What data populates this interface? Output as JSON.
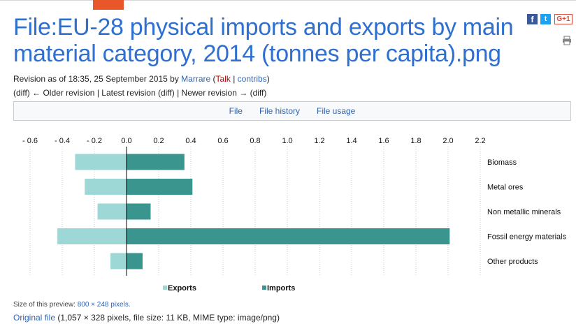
{
  "page": {
    "title": "File:EU-28 physical imports and exports by main material category, 2014 (tonnes per capita).png"
  },
  "share": {
    "facebook": "f",
    "twitter": "t",
    "googleplus": "G+1",
    "print_icon": "printer-icon"
  },
  "revision": {
    "prefix": "Revision as of 18:35, 25 September 2015 by ",
    "user": "Marrare",
    "open_paren": " (",
    "talk": "Talk",
    "sep": " | ",
    "contribs": "contribs",
    "close_paren": ")",
    "line2": "(diff) ← Older revision | Latest revision (diff) | Newer revision → (diff)"
  },
  "tabs": [
    "File",
    "File history",
    "File usage"
  ],
  "chart_data": {
    "type": "bar",
    "orientation": "horizontal",
    "categories": [
      "Biomass",
      "Metal ores",
      "Non metallic minerals",
      "Fossil energy materials",
      "Other products"
    ],
    "series": [
      {
        "name": "Exports",
        "values": [
          -0.32,
          -0.26,
          -0.18,
          -0.43,
          -0.1
        ],
        "color": "#9ed8d6"
      },
      {
        "name": "Imports",
        "values": [
          0.36,
          0.41,
          0.15,
          2.01,
          0.1
        ],
        "color": "#3a958e"
      }
    ],
    "xlim": [
      -0.6,
      2.2
    ],
    "ticks": [
      -0.6,
      -0.4,
      -0.2,
      0.0,
      0.2,
      0.4,
      0.6,
      0.8,
      1.0,
      1.2,
      1.4,
      1.6,
      1.8,
      2.0,
      2.2
    ],
    "tick_labels": [
      "- 0.6",
      "- 0.4",
      "- 0.2",
      "0.0",
      "0.2",
      "0.4",
      "0.6",
      "0.8",
      "1.0",
      "1.2",
      "1.4",
      "1.6",
      "1.8",
      "2.0",
      "2.2"
    ],
    "grid": true,
    "legend_position": "bottom"
  },
  "preview": {
    "label": "Size of this preview: ",
    "size_link": "800 × 248 pixels",
    "end": "."
  },
  "original": {
    "link": "Original file",
    "details": " (1,057 × 328 pixels, file size: 11 KB, MIME type: image/png)"
  }
}
